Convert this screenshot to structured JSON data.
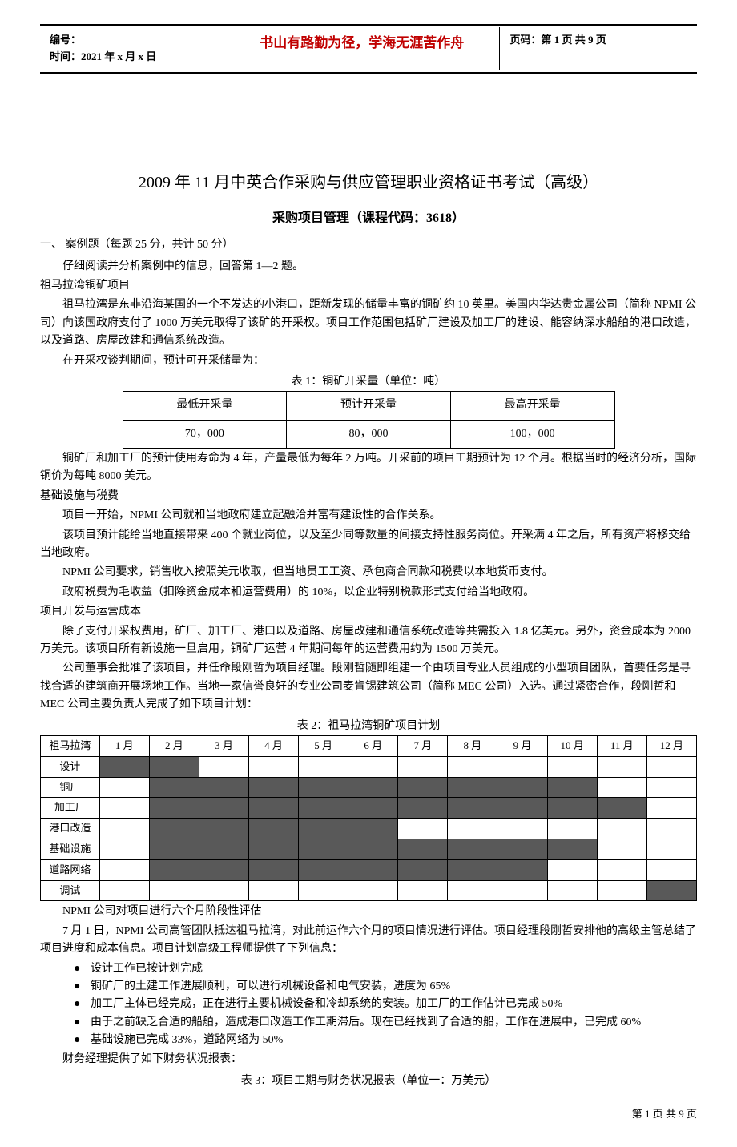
{
  "header": {
    "doc_id_label": "编号：",
    "time_label": "时间：2021 年 x 月 x 日",
    "motto": "书山有路勤为径，学海无涯苦作舟",
    "page_label": "页码：第 1 页 共 9 页",
    "motto_color": "#c00000"
  },
  "title": "2009 年 11 月中英合作采购与供应管理职业资格证书考试（高级）",
  "subtitle": "采购项目管理（课程代码：3618）",
  "section1": {
    "heading": "一、 案例题（每题 25 分，共计 50 分）",
    "instruction": "仔细阅读并分析案例中的信息，回答第 1—2 题。",
    "case_title": "祖马拉湾铜矿项目",
    "p1": "祖马拉湾是东非沿海某国的一个不发达的小港口，距新发现的储量丰富的铜矿约 10 英里。美国内华达贵金属公司（简称 NPMI 公司）向该国政府支付了 1000 万美元取得了该矿的开采权。项目工作范围包括矿厂建设及加工厂的建设、能容纳深水船舶的港口改造，以及道路、房屋改建和通信系统改造。",
    "p2": "在开采权谈判期间，预计可开采储量为："
  },
  "table1": {
    "caption": "表 1：铜矿开采量（单位：吨）",
    "headers": [
      "最低开采量",
      "预计开采量",
      "最高开采量"
    ],
    "values": [
      "70，000",
      "80，000",
      "100，000"
    ]
  },
  "after_t1": {
    "p1": "铜矿厂和加工厂的预计使用寿命为 4 年，产量最低为每年 2 万吨。开采前的项目工期预计为 12 个月。根据当时的经济分析，国际铜价为每吨 8000 美元。",
    "h1": "基础设施与税费",
    "p2": "项目一开始，NPMI 公司就和当地政府建立起融洽并富有建设性的合作关系。",
    "p3": "该项目预计能给当地直接带来 400 个就业岗位，以及至少同等数量的间接支持性服务岗位。开采满 4 年之后，所有资产将移交给当地政府。",
    "p4": "NPMI 公司要求，销售收入按照美元收取，但当地员工工资、承包商合同款和税费以本地货币支付。",
    "p5": "政府税费为毛收益（扣除资金成本和运营费用）的 10%，以企业特别税款形式支付给当地政府。",
    "h2": "项目开发与运营成本",
    "p6": "除了支付开采权费用，矿厂、加工厂、港口以及道路、房屋改建和通信系统改造等共需投入 1.8 亿美元。另外，资金成本为 2000 万美元。该项目所有新设施一旦启用，铜矿厂运营 4 年期间每年的运营费用约为 1500 万美元。",
    "p7": "公司董事会批准了该项目，并任命段刚哲为项目经理。段刚哲随即组建一个由项目专业人员组成的小型项目团队，首要任务是寻找合适的建筑商开展场地工作。当地一家信誉良好的专业公司麦肯锡建筑公司（简称 MEC 公司）入选。通过紧密合作，段刚哲和 MEC 公司主要负责人完成了如下项目计划："
  },
  "table2": {
    "caption": "表 2：祖马拉湾铜矿项目计划",
    "corner": "祖马拉湾",
    "months": [
      "1 月",
      "2 月",
      "3 月",
      "4 月",
      "5 月",
      "6 月",
      "7 月",
      "8 月",
      "9 月",
      "10 月",
      "11 月",
      "12 月"
    ],
    "rows": [
      {
        "label": "设计",
        "fill": [
          1,
          1,
          0,
          0,
          0,
          0,
          0,
          0,
          0,
          0,
          0,
          0
        ]
      },
      {
        "label": "铜厂",
        "fill": [
          0,
          1,
          1,
          1,
          1,
          1,
          1,
          1,
          1,
          1,
          0,
          0
        ]
      },
      {
        "label": "加工厂",
        "fill": [
          0,
          1,
          1,
          1,
          1,
          1,
          1,
          1,
          1,
          1,
          1,
          0
        ]
      },
      {
        "label": "港口改造",
        "fill": [
          0,
          1,
          1,
          1,
          1,
          1,
          0,
          0,
          0,
          0,
          0,
          0
        ]
      },
      {
        "label": "基础设施",
        "fill": [
          0,
          1,
          1,
          1,
          1,
          1,
          1,
          1,
          1,
          1,
          0,
          0
        ]
      },
      {
        "label": "道路网络",
        "fill": [
          0,
          1,
          1,
          1,
          1,
          1,
          1,
          1,
          1,
          0,
          0,
          0
        ]
      },
      {
        "label": "调试",
        "fill": [
          0,
          0,
          0,
          0,
          0,
          0,
          0,
          0,
          0,
          0,
          0,
          1
        ]
      }
    ],
    "fill_color": "#595959"
  },
  "after_t2": {
    "h1": "NPMI 公司对项目进行六个月阶段性评估",
    "p1": "7 月 1 日，NPMI 公司高管团队抵达祖马拉湾，对此前运作六个月的项目情况进行评估。项目经理段刚哲安排他的高级主管总结了项目进度和成本信息。项目计划高级工程师提供了下列信息：",
    "bullets": [
      "设计工作已按计划完成",
      "铜矿厂的土建工作进展顺利，可以进行机械设备和电气安装，进度为 65%",
      "加工厂主体已经完成，正在进行主要机械设备和冷却系统的安装。加工厂的工作估计已完成 50%",
      "由于之前缺乏合适的船舶，造成港口改造工作工期滞后。现在已经找到了合适的船，工作在进展中，已完成 60%",
      "基础设施已完成 33%，道路网络为 50%"
    ],
    "p2": "财务经理提供了如下财务状况报表：",
    "t3_caption": "表 3：项目工期与财务状况报表（单位一：万美元）"
  },
  "footer": "第 1 页 共 9 页"
}
